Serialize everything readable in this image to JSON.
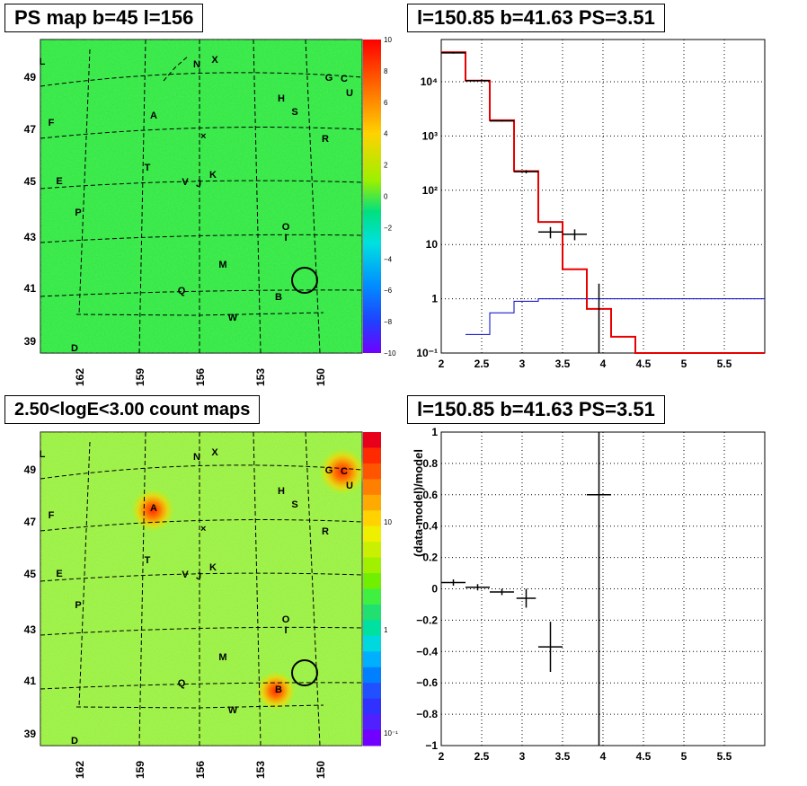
{
  "panels": {
    "ps_map": {
      "title": "PS map b=45 l=156",
      "y_ticks": [
        "49",
        "47",
        "45",
        "43",
        "41",
        "39"
      ],
      "x_ticks": [
        "162",
        "159",
        "156",
        "153",
        "150"
      ],
      "colorbar_ticks": [
        "10",
        "8",
        "6",
        "4",
        "2",
        "0",
        "−2",
        "−4",
        "−6",
        "−8",
        "−10"
      ],
      "colors": {
        "background": "#31e83a"
      }
    },
    "count_map": {
      "title": "2.50<logE<3.00 count maps",
      "y_ticks": [
        "49",
        "47",
        "45",
        "43",
        "41",
        "39"
      ],
      "x_ticks": [
        "162",
        "159",
        "156",
        "153",
        "150"
      ],
      "colorbar_ticks": [
        "10",
        "1",
        "10⁻¹"
      ],
      "colors": {
        "background": "#88ee44"
      }
    },
    "spectrum": {
      "title": "l=150.85 b=41.63 PS=3.51"
    },
    "residual": {
      "title": "l=150.85 b=41.63 PS=3.51"
    }
  },
  "source_labels": [
    {
      "id": "L",
      "text": "L"
    },
    {
      "id": "N",
      "text": "N"
    },
    {
      "id": "X",
      "text": "X"
    },
    {
      "id": "G",
      "text": "G"
    },
    {
      "id": "C",
      "text": "C"
    },
    {
      "id": "U",
      "text": "U"
    },
    {
      "id": "H",
      "text": "H"
    },
    {
      "id": "S",
      "text": "S"
    },
    {
      "id": "F",
      "text": "F"
    },
    {
      "id": "A",
      "text": "A"
    },
    {
      "id": "R",
      "text": "R"
    },
    {
      "id": "T",
      "text": "T"
    },
    {
      "id": "K",
      "text": "K"
    },
    {
      "id": "V",
      "text": "V"
    },
    {
      "id": "J",
      "text": "J"
    },
    {
      "id": "E",
      "text": "E"
    },
    {
      "id": "P",
      "text": "P"
    },
    {
      "id": "O",
      "text": "O"
    },
    {
      "id": "I",
      "text": "I"
    },
    {
      "id": "M",
      "text": "M"
    },
    {
      "id": "Q",
      "text": "Q"
    },
    {
      "id": "B",
      "text": "B"
    },
    {
      "id": "W",
      "text": "W"
    },
    {
      "id": "D",
      "text": "D"
    }
  ],
  "chart_data": [
    {
      "type": "heatmap",
      "title": "PS map b=45 l=156",
      "ylim": [
        38.7,
        50.4
      ],
      "xlim": [
        163.5,
        148.7
      ],
      "colorbar_range": [
        -10,
        10
      ]
    },
    {
      "type": "heatmap",
      "title": "2.50<logE<3.00 count maps",
      "colorbar_scale": "log",
      "colorbar_range": [
        0.07,
        30
      ]
    },
    {
      "type": "line",
      "title": "l=150.85 b=41.63 PS=3.51",
      "xlim": [
        2,
        6
      ],
      "ylim": [
        0.1,
        60000
      ],
      "yscale": "log",
      "x_ticks": [
        2,
        2.5,
        3,
        3.5,
        4,
        4.5,
        5,
        5.5
      ],
      "y_ticks": [
        "10⁻¹",
        "1",
        "10",
        "10²",
        "10³",
        "10⁴"
      ],
      "grid": true,
      "model_red": {
        "edges": [
          2,
          2.3,
          2.6,
          2.9,
          3.2,
          3.5,
          3.8,
          4.1,
          4.4,
          6
        ],
        "values": [
          35000,
          10500,
          1950,
          225,
          26,
          3.5,
          0.65,
          0.2,
          0.1
        ]
      },
      "model_blue": {
        "edges": [
          2.3,
          2.6,
          2.9,
          3.2,
          3.5,
          3.8,
          6
        ],
        "values": [
          0.22,
          0.55,
          0.9,
          1.0,
          1.0,
          1.0
        ]
      },
      "data_points": [
        {
          "x": 2.15,
          "y": 34000,
          "xerr": 0.15,
          "ylo": 33000,
          "yhi": 35000
        },
        {
          "x": 2.45,
          "y": 10500,
          "xerr": 0.15,
          "ylo": 10200,
          "yhi": 10800
        },
        {
          "x": 2.75,
          "y": 1900,
          "xerr": 0.15,
          "ylo": 1850,
          "yhi": 1950
        },
        {
          "x": 3.05,
          "y": 220,
          "xerr": 0.15,
          "ylo": 205,
          "yhi": 235
        },
        {
          "x": 3.35,
          "y": 17,
          "xerr": 0.15,
          "ylo": 13,
          "yhi": 21
        },
        {
          "x": 3.65,
          "y": 15.5,
          "xerr": 0.15,
          "ylo": 12,
          "yhi": 19
        },
        {
          "x": 3.95,
          "y": 1,
          "xerr": 0,
          "ylo": 0.1,
          "yhi": 1.9
        }
      ]
    },
    {
      "type": "scatter",
      "title": "l=150.85 b=41.63 PS=3.51",
      "xlim": [
        2,
        6
      ],
      "ylim": [
        -1,
        1
      ],
      "x_ticks": [
        2,
        2.5,
        3,
        3.5,
        4,
        4.5,
        5,
        5.5
      ],
      "y_ticks": [
        -1,
        -0.8,
        -0.6,
        -0.4,
        -0.2,
        0,
        0.2,
        0.4,
        0.6,
        0.8,
        1
      ],
      "ylabel": "(data-model)/model",
      "grid": true,
      "points": [
        {
          "x": 2.15,
          "y": 0.04,
          "xerr": 0.15,
          "yerr": 0.02
        },
        {
          "x": 2.45,
          "y": 0.01,
          "xerr": 0.15,
          "yerr": 0.02
        },
        {
          "x": 2.75,
          "y": -0.02,
          "xerr": 0.15,
          "yerr": 0.02
        },
        {
          "x": 3.05,
          "y": -0.06,
          "xerr": 0.12,
          "yerr": 0.06
        },
        {
          "x": 3.35,
          "y": -0.37,
          "xerr": 0.15,
          "yerr": 0.16
        },
        {
          "x": 3.95,
          "y": 0.6,
          "xerr": 0.15,
          "yerr": 1.6
        }
      ]
    }
  ]
}
